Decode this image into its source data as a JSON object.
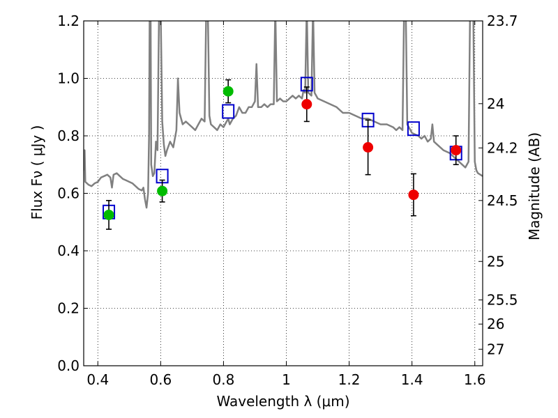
{
  "chart_data": {
    "type": "scatter",
    "xlabel": "Wavelength  λ (μm)",
    "ylabel": "Flux  Fν  ( μJy )",
    "ylabel_right": "Magnitude (AB)",
    "xlim": [
      0.355,
      1.625
    ],
    "ylim": [
      0.0,
      1.2
    ],
    "grid": true,
    "x_ticks": [
      0.4,
      0.6,
      0.8,
      1.0,
      1.2,
      1.4,
      1.6
    ],
    "x_tick_labels": [
      "0.4",
      "0.6",
      "0.8",
      "1",
      "1.2",
      "1.4",
      "1.6"
    ],
    "y_ticks": [
      0.0,
      0.2,
      0.4,
      0.6,
      0.8,
      1.0,
      1.2
    ],
    "y_tick_labels": [
      "0.0",
      "0.2",
      "0.4",
      "0.6",
      "0.8",
      "1.0",
      "1.2"
    ],
    "right_ticks": [
      {
        "label": "23.7",
        "flux": 1.2
      },
      {
        "label": "24",
        "flux": 0.912
      },
      {
        "label": "24.2",
        "flux": 0.758
      },
      {
        "label": "24.5",
        "flux": 0.575
      },
      {
        "label": "25",
        "flux": 0.363
      },
      {
        "label": "25.5",
        "flux": 0.229
      },
      {
        "label": "26",
        "flux": 0.145
      },
      {
        "label": "27",
        "flux": 0.0575
      }
    ],
    "model_spectrum": {
      "color": "#808080",
      "points": [
        [
          0.355,
          0.68
        ],
        [
          0.358,
          0.75
        ],
        [
          0.36,
          0.64
        ],
        [
          0.37,
          0.63
        ],
        [
          0.38,
          0.625
        ],
        [
          0.39,
          0.635
        ],
        [
          0.4,
          0.64
        ],
        [
          0.41,
          0.655
        ],
        [
          0.42,
          0.66
        ],
        [
          0.43,
          0.665
        ],
        [
          0.44,
          0.655
        ],
        [
          0.445,
          0.62
        ],
        [
          0.45,
          0.665
        ],
        [
          0.46,
          0.67
        ],
        [
          0.47,
          0.66
        ],
        [
          0.48,
          0.65
        ],
        [
          0.49,
          0.645
        ],
        [
          0.5,
          0.64
        ],
        [
          0.51,
          0.635
        ],
        [
          0.52,
          0.625
        ],
        [
          0.53,
          0.615
        ],
        [
          0.54,
          0.61
        ],
        [
          0.545,
          0.62
        ],
        [
          0.55,
          0.58
        ],
        [
          0.555,
          0.55
        ],
        [
          0.56,
          0.6
        ],
        [
          0.563,
          0.8
        ],
        [
          0.565,
          1.25
        ],
        [
          0.568,
          1.25
        ],
        [
          0.57,
          0.7
        ],
        [
          0.575,
          0.66
        ],
        [
          0.58,
          0.67
        ],
        [
          0.585,
          0.78
        ],
        [
          0.59,
          0.75
        ],
        [
          0.595,
          1.25
        ],
        [
          0.6,
          1.25
        ],
        [
          0.605,
          0.85
        ],
        [
          0.61,
          0.77
        ],
        [
          0.615,
          0.73
        ],
        [
          0.62,
          0.75
        ],
        [
          0.63,
          0.78
        ],
        [
          0.64,
          0.76
        ],
        [
          0.65,
          0.82
        ],
        [
          0.655,
          1.0
        ],
        [
          0.66,
          0.88
        ],
        [
          0.67,
          0.84
        ],
        [
          0.68,
          0.85
        ],
        [
          0.69,
          0.84
        ],
        [
          0.7,
          0.83
        ],
        [
          0.71,
          0.82
        ],
        [
          0.72,
          0.84
        ],
        [
          0.73,
          0.86
        ],
        [
          0.74,
          0.85
        ],
        [
          0.745,
          1.25
        ],
        [
          0.75,
          1.25
        ],
        [
          0.755,
          0.87
        ],
        [
          0.76,
          0.84
        ],
        [
          0.77,
          0.83
        ],
        [
          0.78,
          0.82
        ],
        [
          0.79,
          0.84
        ],
        [
          0.8,
          0.83
        ],
        [
          0.81,
          0.85
        ],
        [
          0.815,
          0.86
        ],
        [
          0.82,
          0.84
        ],
        [
          0.83,
          0.86
        ],
        [
          0.84,
          0.87
        ],
        [
          0.85,
          0.9
        ],
        [
          0.86,
          0.88
        ],
        [
          0.87,
          0.88
        ],
        [
          0.88,
          0.9
        ],
        [
          0.89,
          0.9
        ],
        [
          0.9,
          0.92
        ],
        [
          0.905,
          1.05
        ],
        [
          0.91,
          0.9
        ],
        [
          0.92,
          0.9
        ],
        [
          0.93,
          0.91
        ],
        [
          0.94,
          0.9
        ],
        [
          0.95,
          0.91
        ],
        [
          0.96,
          0.91
        ],
        [
          0.965,
          1.25
        ],
        [
          0.97,
          0.92
        ],
        [
          0.98,
          0.93
        ],
        [
          0.99,
          0.92
        ],
        [
          1.0,
          0.92
        ],
        [
          1.01,
          0.93
        ],
        [
          1.02,
          0.94
        ],
        [
          1.03,
          0.93
        ],
        [
          1.04,
          0.94
        ],
        [
          1.05,
          0.93
        ],
        [
          1.055,
          0.96
        ],
        [
          1.06,
          0.95
        ],
        [
          1.065,
          1.25
        ],
        [
          1.07,
          0.95
        ],
        [
          1.08,
          0.94
        ],
        [
          1.085,
          1.25
        ],
        [
          1.09,
          0.95
        ],
        [
          1.1,
          0.93
        ],
        [
          1.12,
          0.92
        ],
        [
          1.14,
          0.91
        ],
        [
          1.16,
          0.9
        ],
        [
          1.18,
          0.88
        ],
        [
          1.2,
          0.88
        ],
        [
          1.22,
          0.87
        ],
        [
          1.24,
          0.86
        ],
        [
          1.26,
          0.86
        ],
        [
          1.28,
          0.85
        ],
        [
          1.3,
          0.84
        ],
        [
          1.32,
          0.84
        ],
        [
          1.34,
          0.83
        ],
        [
          1.35,
          0.82
        ],
        [
          1.36,
          0.83
        ],
        [
          1.37,
          0.82
        ],
        [
          1.375,
          1.25
        ],
        [
          1.38,
          1.25
        ],
        [
          1.385,
          0.84
        ],
        [
          1.4,
          0.81
        ],
        [
          1.42,
          0.8
        ],
        [
          1.43,
          0.79
        ],
        [
          1.44,
          0.8
        ],
        [
          1.45,
          0.78
        ],
        [
          1.46,
          0.79
        ],
        [
          1.465,
          0.84
        ],
        [
          1.47,
          0.78
        ],
        [
          1.48,
          0.77
        ],
        [
          1.5,
          0.75
        ],
        [
          1.52,
          0.74
        ],
        [
          1.54,
          0.72
        ],
        [
          1.56,
          0.7
        ],
        [
          1.57,
          0.69
        ],
        [
          1.58,
          0.71
        ],
        [
          1.585,
          1.25
        ],
        [
          1.595,
          1.25
        ],
        [
          1.6,
          0.71
        ],
        [
          1.605,
          0.68
        ],
        [
          1.61,
          0.67
        ],
        [
          1.625,
          0.66
        ]
      ]
    },
    "series": [
      {
        "marker": "open-square",
        "color": "#0000cc",
        "points": [
          {
            "x": 0.435,
            "y": 0.535
          },
          {
            "x": 0.605,
            "y": 0.66
          },
          {
            "x": 0.815,
            "y": 0.885
          },
          {
            "x": 1.065,
            "y": 0.98
          },
          {
            "x": 1.26,
            "y": 0.855
          },
          {
            "x": 1.405,
            "y": 0.825
          },
          {
            "x": 1.54,
            "y": 0.74
          }
        ]
      },
      {
        "marker": "filled-circle",
        "color": "#00bb00",
        "points": [
          {
            "x": 0.435,
            "y": 0.525,
            "err": 0.05
          },
          {
            "x": 0.605,
            "y": 0.608,
            "err": 0.038
          },
          {
            "x": 0.815,
            "y": 0.955,
            "err": 0.04
          }
        ]
      },
      {
        "marker": "filled-circle",
        "color": "#ee0000",
        "points": [
          {
            "x": 1.065,
            "y": 0.91,
            "err": 0.06
          },
          {
            "x": 1.26,
            "y": 0.76,
            "err": 0.095
          },
          {
            "x": 1.405,
            "y": 0.595,
            "err": 0.073
          },
          {
            "x": 1.54,
            "y": 0.75,
            "err": 0.05
          }
        ]
      }
    ]
  }
}
